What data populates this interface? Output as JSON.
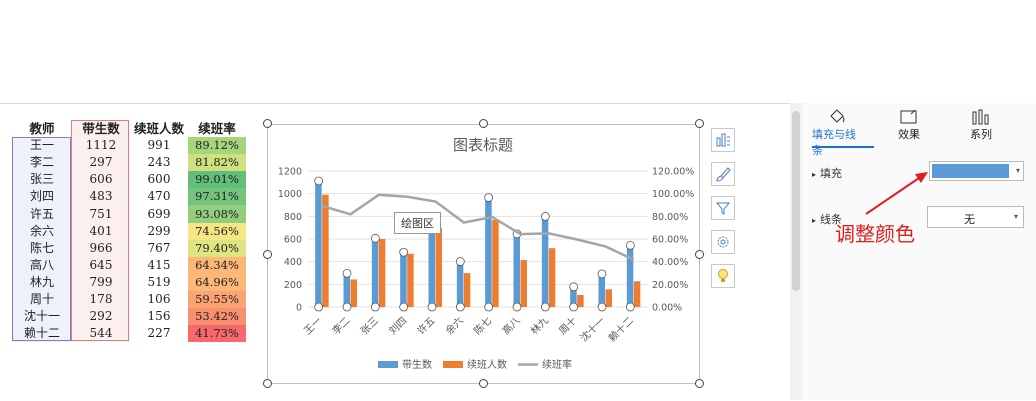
{
  "table": {
    "headers": [
      "教师",
      "带生数",
      "续班人数",
      "续班率"
    ],
    "rows": [
      [
        "王一",
        "1112",
        "991",
        "89.12%"
      ],
      [
        "李二",
        "297",
        "243",
        "81.82%"
      ],
      [
        "张三",
        "606",
        "600",
        "99.01%"
      ],
      [
        "刘四",
        "483",
        "470",
        "97.31%"
      ],
      [
        "许五",
        "751",
        "699",
        "93.08%"
      ],
      [
        "余六",
        "401",
        "299",
        "74.56%"
      ],
      [
        "陈七",
        "966",
        "767",
        "79.40%"
      ],
      [
        "高八",
        "645",
        "415",
        "64.34%"
      ],
      [
        "林九",
        "799",
        "519",
        "64.96%"
      ],
      [
        "周十",
        "178",
        "106",
        "59.55%"
      ],
      [
        "沈十一",
        "292",
        "156",
        "53.42%"
      ],
      [
        "赖十二",
        "544",
        "227",
        "41.73%"
      ]
    ],
    "rate_colors": [
      "#a6d57c",
      "#cfe07f",
      "#63be7b",
      "#75c47d",
      "#94cd7e",
      "#f6e784",
      "#e0e382",
      "#fbb777",
      "#fbb877",
      "#fca372",
      "#f98f6e",
      "#f8696b"
    ]
  },
  "chart_data": {
    "type": "bar",
    "title": "图表标题",
    "categories": [
      "王一",
      "李二",
      "张三",
      "刘四",
      "许五",
      "余六",
      "陈七",
      "高八",
      "林九",
      "周十",
      "沈十一",
      "赖十二"
    ],
    "series": [
      {
        "name": "带生数",
        "type": "bar",
        "axis": "left",
        "color": "#5b9bd5",
        "values": [
          1112,
          297,
          606,
          483,
          751,
          401,
          966,
          645,
          799,
          178,
          292,
          544
        ]
      },
      {
        "name": "续班人数",
        "type": "bar",
        "axis": "left",
        "color": "#ed7d31",
        "values": [
          991,
          243,
          600,
          470,
          699,
          299,
          767,
          415,
          519,
          106,
          156,
          227
        ]
      },
      {
        "name": "续班率",
        "type": "line",
        "axis": "right",
        "color": "#a5a5a5",
        "values": [
          89.12,
          81.82,
          99.01,
          97.31,
          93.08,
          74.56,
          79.4,
          64.34,
          64.96,
          59.55,
          53.42,
          41.73
        ]
      }
    ],
    "yticks_left": [
      "0",
      "200",
      "400",
      "600",
      "800",
      "1000",
      "1200"
    ],
    "yticks_right": [
      "0.00%",
      "20.00%",
      "40.00%",
      "60.00%",
      "80.00%",
      "100.00%",
      "120.00%"
    ],
    "ylim_left": [
      0,
      1200
    ],
    "ylim_right": [
      0,
      120
    ],
    "legend": "bottom",
    "grid": true
  },
  "chart": {
    "tooltip": "绘图区"
  },
  "tools": [
    "chart-elements-icon",
    "chart-style-icon",
    "chart-filter-icon",
    "chart-settings-icon",
    "chart-idea-icon"
  ],
  "panel": {
    "tabs": [
      {
        "label": "填充与线条",
        "icon": "fill-line-icon",
        "active": true
      },
      {
        "label": "效果",
        "icon": "effects-icon",
        "active": false
      },
      {
        "label": "系列",
        "icon": "series-icon",
        "active": false
      }
    ],
    "fill_label": "填充",
    "fill_color": "#5b9bd5",
    "line_label": "线条",
    "line_value": "无",
    "annotation": "调整颜色",
    "annotation_color": "#e01e1e"
  }
}
